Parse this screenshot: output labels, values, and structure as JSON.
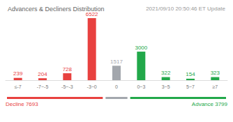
{
  "chart_data": {
    "type": "bar",
    "title": "Advancers & Decliners Distribution",
    "subtitle": "2021/09/10 20:50:46 ET Update",
    "categories": [
      "≤-7",
      "-7~-5",
      "-5~-3",
      "-3~0",
      "0",
      "0~3",
      "3~5",
      "5~7",
      "≥7"
    ],
    "values": [
      239,
      204,
      728,
      6522,
      1517,
      3000,
      322,
      154,
      323
    ],
    "colors": [
      "#e8413f",
      "#e8413f",
      "#e8413f",
      "#e8413f",
      "#a3a7ad",
      "#22a84a",
      "#22a84a",
      "#22a84a",
      "#22a84a"
    ],
    "data_labels": true,
    "tick_labels": "x",
    "grid": false,
    "annotations": [
      {
        "text": "Decline 7693",
        "color": "#e8413f"
      },
      {
        "text": "Advance 3799",
        "color": "#22a84a"
      }
    ]
  }
}
